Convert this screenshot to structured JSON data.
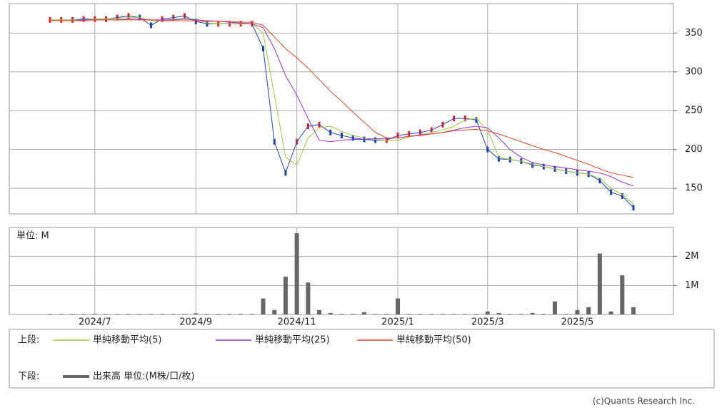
{
  "chart_data": [
    {
      "type": "line",
      "categories": [
        null,
        null,
        null,
        null,
        "2024/7",
        null,
        null,
        null,
        null,
        null,
        null,
        null,
        null,
        "2024/9",
        null,
        null,
        null,
        null,
        null,
        null,
        null,
        null,
        "2024/11",
        null,
        null,
        null,
        null,
        null,
        null,
        null,
        null,
        "2025/1",
        null,
        null,
        null,
        null,
        null,
        null,
        null,
        "2025/3",
        null,
        null,
        null,
        null,
        null,
        null,
        null,
        "2025/5",
        null,
        null,
        null,
        null,
        null
      ],
      "values": [
        367,
        367,
        367,
        368,
        368,
        368,
        370,
        372,
        370,
        360,
        368,
        370,
        372,
        365,
        362,
        362,
        362,
        362,
        362,
        330,
        210,
        170,
        210,
        230,
        232,
        222,
        218,
        215,
        213,
        212,
        212,
        218,
        220,
        222,
        225,
        232,
        240,
        240,
        238,
        200,
        188,
        187,
        185,
        180,
        178,
        175,
        172,
        170,
        168,
        160,
        145,
        140,
        125
      ],
      "color": "#1f3fbf",
      "series": [
        {
          "name": "単純移動平均(5)",
          "color": "#99cc33",
          "values": [
            367,
            367,
            367,
            367,
            368,
            368,
            369,
            370,
            370,
            366,
            366,
            368,
            369,
            368,
            363,
            362,
            362,
            362,
            362,
            350,
            270,
            190,
            180,
            215,
            228,
            230,
            223,
            218,
            215,
            213,
            212,
            212,
            216,
            219,
            222,
            225,
            230,
            238,
            240,
            225,
            190,
            187,
            185,
            181,
            178,
            175,
            172,
            170,
            168,
            163,
            150,
            142,
            130
          ]
        },
        {
          "name": "単純移動平均(25)",
          "color": "#9933cc",
          "values": [
            366,
            366,
            366,
            367,
            367,
            367,
            367,
            368,
            368,
            367,
            367,
            367,
            368,
            367,
            366,
            365,
            364,
            363,
            362,
            357,
            330,
            295,
            270,
            240,
            212,
            210,
            212,
            213,
            213,
            214,
            214,
            215,
            217,
            218,
            220,
            222,
            225,
            228,
            230,
            228,
            215,
            200,
            190,
            183,
            180,
            178,
            176,
            174,
            172,
            170,
            165,
            158,
            153
          ]
        },
        {
          "name": "単純移動平均(50)",
          "color": "#ee4422",
          "values": [
            366,
            366,
            366,
            366,
            367,
            367,
            367,
            367,
            367,
            367,
            366,
            366,
            366,
            366,
            365,
            365,
            365,
            364,
            364,
            360,
            345,
            330,
            318,
            305,
            290,
            275,
            262,
            248,
            235,
            222,
            215,
            215,
            217,
            219,
            220,
            222,
            224,
            225,
            226,
            224,
            220,
            215,
            210,
            205,
            200,
            196,
            191,
            186,
            181,
            175,
            170,
            167,
            164
          ]
        }
      ],
      "ylim": [
        117,
        388
      ],
      "yticks": [
        150,
        200,
        250,
        300,
        350
      ],
      "grid": true,
      "legend_label": "上段:"
    },
    {
      "type": "bar",
      "unit_label": "単位: M",
      "series": [
        {
          "name": "出来高 単位:(M株/口/枚)",
          "color": "#666666",
          "values": [
            0.02,
            0.02,
            0.02,
            0.02,
            0.02,
            0.02,
            0.02,
            0.02,
            0.02,
            0.02,
            0.02,
            0.02,
            0.02,
            0.04,
            0.02,
            0.02,
            0.02,
            0.02,
            0.02,
            0.55,
            0.15,
            1.3,
            2.8,
            1.1,
            0.15,
            0.05,
            0.02,
            0.02,
            0.08,
            0.02,
            0.02,
            0.55,
            0.02,
            0.02,
            0.02,
            0.02,
            0.02,
            0.02,
            0.02,
            0.1,
            0.05,
            0.02,
            0.02,
            0.05,
            0.02,
            0.45,
            0.02,
            0.15,
            0.25,
            2.1,
            0.1,
            1.35,
            0.25
          ]
        }
      ],
      "ylim": [
        0,
        3
      ],
      "yticks": [
        {
          "value": 1,
          "label": "1M"
        },
        {
          "value": 2,
          "label": "2M"
        }
      ],
      "legend_label": "下段:"
    }
  ],
  "copyright": "(c)Quants Research Inc."
}
